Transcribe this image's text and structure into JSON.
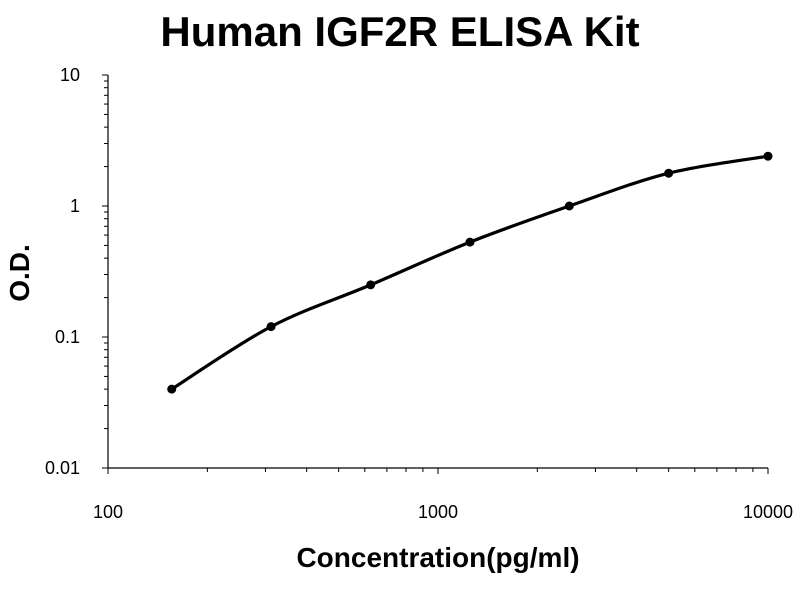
{
  "chart_data": {
    "type": "line",
    "title": "Human IGF2R ELISA Kit",
    "xlabel": "Concentration(pg/ml)",
    "ylabel": "O.D.",
    "xscale": "log",
    "yscale": "log",
    "xlim": [
      100,
      10000
    ],
    "ylim": [
      0.01,
      10
    ],
    "x_ticks": [
      {
        "value": 100,
        "label": "100"
      },
      {
        "value": 1000,
        "label": "1000"
      },
      {
        "value": 10000,
        "label": "10000"
      }
    ],
    "y_ticks": [
      {
        "value": 0.01,
        "label": "0.01"
      },
      {
        "value": 0.1,
        "label": "0.1"
      },
      {
        "value": 1,
        "label": "1"
      },
      {
        "value": 10,
        "label": "10"
      }
    ],
    "grid": false,
    "legend": "none",
    "series": [
      {
        "x": [
          156,
          312,
          625,
          1250,
          2500,
          5000,
          10000
        ],
        "y": [
          0.04,
          0.12,
          0.25,
          0.53,
          1.0,
          1.78,
          2.4
        ],
        "color": "#000000",
        "markers": true,
        "smooth": true
      }
    ]
  }
}
